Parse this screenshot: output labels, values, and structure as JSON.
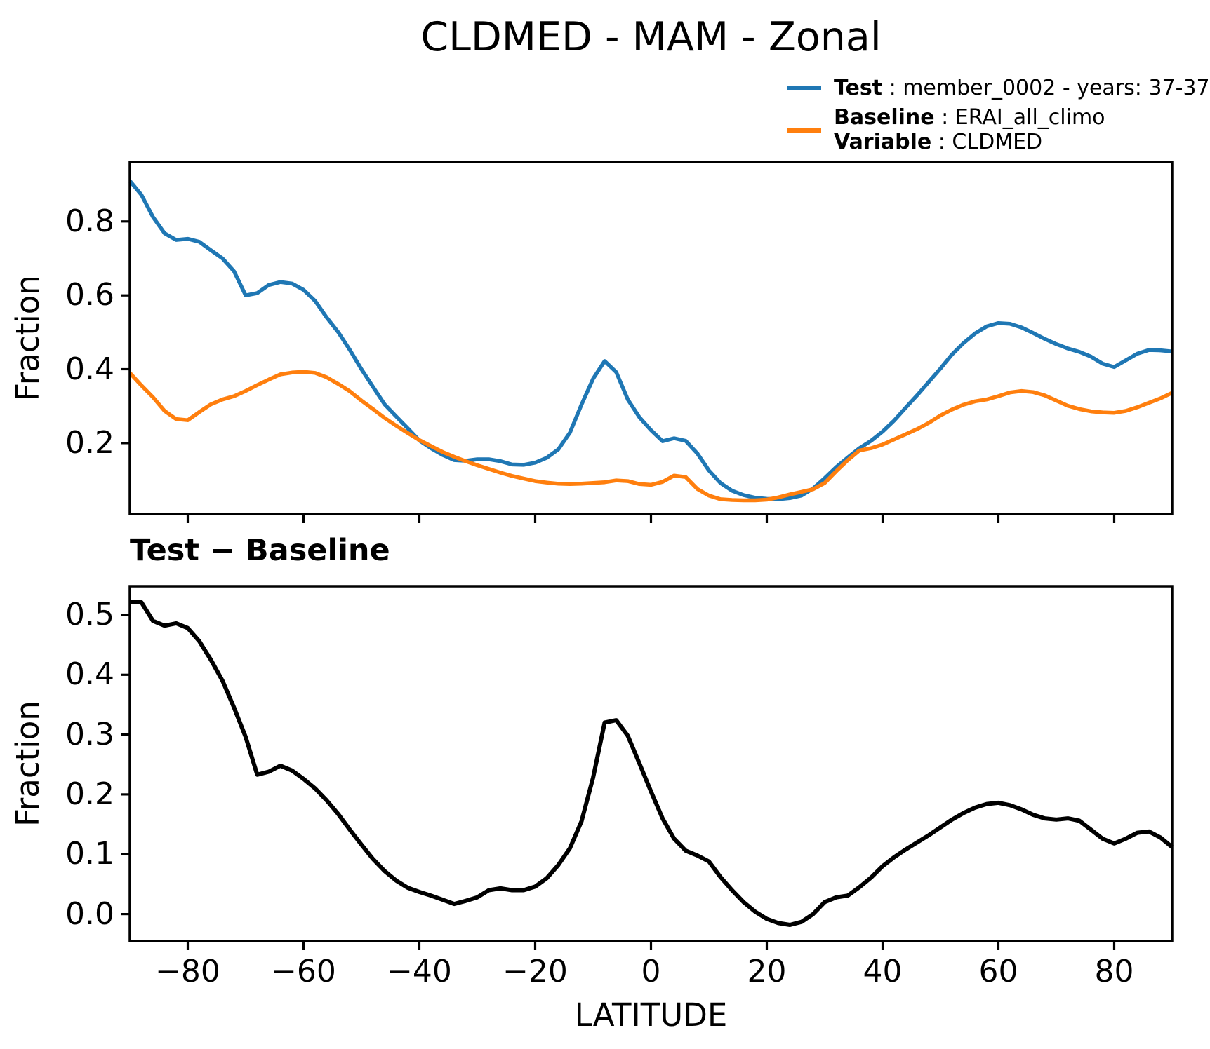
{
  "title": "CLDMED - MAM - Zonal",
  "panel2_title": "Test − Baseline",
  "xlabel": "LATITUDE",
  "ylabel": "Fraction",
  "legend": {
    "test_bold": "Test",
    "test_rest": " : member_0002 - years: 37-37",
    "baseline_bold": "Baseline",
    "baseline_rest": " : ERAI_all_climo",
    "variable_bold": "Variable",
    "variable_rest": " : CLDMED",
    "test_color": "#1f77b4",
    "baseline_color": "#ff7f0e"
  },
  "colors": {
    "test_line": "#1f77b4",
    "baseline_line": "#ff7f0e",
    "diff_line": "#000000",
    "axis": "#000000",
    "background": "#ffffff"
  },
  "chart_data": [
    {
      "type": "line",
      "title": "CLDMED - MAM - Zonal",
      "xlabel": "",
      "ylabel": "Fraction",
      "grid": false,
      "legend_position": "above-right",
      "xlim": [
        -90,
        90
      ],
      "ylim": [
        0.008,
        0.961
      ],
      "x_ticks": [
        -80,
        -60,
        -40,
        -20,
        0,
        20,
        40,
        60,
        80
      ],
      "x_tick_labels": [],
      "y_ticks": [
        0.2,
        0.4,
        0.6,
        0.8
      ],
      "y_tick_labels": [
        "0.2",
        "0.4",
        "0.6",
        "0.8"
      ],
      "x": [
        -90,
        -88,
        -86,
        -84,
        -82,
        -80,
        -78,
        -76,
        -74,
        -72,
        -70,
        -68,
        -66,
        -64,
        -62,
        -60,
        -58,
        -56,
        -54,
        -52,
        -50,
        -48,
        -46,
        -44,
        -42,
        -40,
        -38,
        -36,
        -34,
        -32,
        -30,
        -28,
        -26,
        -24,
        -22,
        -20,
        -18,
        -16,
        -14,
        -12,
        -10,
        -8,
        -6,
        -4,
        -2,
        0,
        2,
        4,
        6,
        8,
        10,
        12,
        14,
        16,
        18,
        20,
        22,
        24,
        26,
        28,
        30,
        32,
        34,
        36,
        38,
        40,
        42,
        44,
        46,
        48,
        50,
        52,
        54,
        56,
        58,
        60,
        62,
        64,
        66,
        68,
        70,
        72,
        74,
        76,
        78,
        80,
        82,
        84,
        86,
        88,
        90
      ],
      "series": [
        {
          "name": "Test : member_0002 - years: 37-37",
          "color": "#1f77b4",
          "values": [
            0.91,
            0.872,
            0.812,
            0.768,
            0.75,
            0.753,
            0.745,
            0.722,
            0.7,
            0.665,
            0.6,
            0.606,
            0.628,
            0.636,
            0.632,
            0.615,
            0.585,
            0.54,
            0.5,
            0.452,
            0.4,
            0.352,
            0.305,
            0.272,
            0.24,
            0.207,
            0.186,
            0.168,
            0.154,
            0.152,
            0.156,
            0.156,
            0.151,
            0.142,
            0.141,
            0.147,
            0.16,
            0.183,
            0.228,
            0.304,
            0.374,
            0.422,
            0.392,
            0.318,
            0.27,
            0.235,
            0.205,
            0.213,
            0.206,
            0.172,
            0.126,
            0.092,
            0.071,
            0.059,
            0.052,
            0.049,
            0.048,
            0.051,
            0.058,
            0.077,
            0.105,
            0.135,
            0.161,
            0.186,
            0.206,
            0.231,
            0.261,
            0.296,
            0.33,
            0.366,
            0.402,
            0.44,
            0.471,
            0.497,
            0.516,
            0.525,
            0.523,
            0.513,
            0.498,
            0.482,
            0.468,
            0.456,
            0.447,
            0.434,
            0.415,
            0.406,
            0.424,
            0.442,
            0.452,
            0.451,
            0.448
          ]
        },
        {
          "name": "Baseline : ERAI_all_climo",
          "color": "#ff7f0e",
          "values": [
            0.39,
            0.356,
            0.324,
            0.287,
            0.265,
            0.262,
            0.284,
            0.305,
            0.318,
            0.327,
            0.341,
            0.357,
            0.372,
            0.386,
            0.391,
            0.393,
            0.39,
            0.378,
            0.36,
            0.34,
            0.315,
            0.292,
            0.268,
            0.247,
            0.227,
            0.208,
            0.192,
            0.176,
            0.163,
            0.151,
            0.14,
            0.13,
            0.12,
            0.111,
            0.104,
            0.097,
            0.093,
            0.09,
            0.089,
            0.09,
            0.092,
            0.094,
            0.099,
            0.097,
            0.089,
            0.087,
            0.095,
            0.112,
            0.108,
            0.076,
            0.058,
            0.048,
            0.046,
            0.045,
            0.045,
            0.047,
            0.053,
            0.061,
            0.068,
            0.075,
            0.092,
            0.124,
            0.154,
            0.18,
            0.186,
            0.196,
            0.21,
            0.224,
            0.238,
            0.255,
            0.275,
            0.291,
            0.304,
            0.313,
            0.318,
            0.327,
            0.337,
            0.341,
            0.338,
            0.329,
            0.315,
            0.301,
            0.292,
            0.286,
            0.283,
            0.282,
            0.287,
            0.297,
            0.309,
            0.321,
            0.336
          ]
        }
      ]
    },
    {
      "type": "line",
      "title": "Test − Baseline",
      "xlabel": "LATITUDE",
      "ylabel": "Fraction",
      "grid": false,
      "xlim": [
        -90,
        90
      ],
      "ylim": [
        -0.045,
        0.548
      ],
      "x_ticks": [
        -80,
        -60,
        -40,
        -20,
        0,
        20,
        40,
        60,
        80
      ],
      "x_tick_labels": [
        "−80",
        "−60",
        "−40",
        "−20",
        "0",
        "20",
        "40",
        "60",
        "80"
      ],
      "y_ticks": [
        0.0,
        0.1,
        0.2,
        0.3,
        0.4,
        0.5
      ],
      "y_tick_labels": [
        "0.0",
        "0.1",
        "0.2",
        "0.3",
        "0.4",
        "0.5"
      ],
      "x": [
        -90,
        -88,
        -86,
        -84,
        -82,
        -80,
        -78,
        -76,
        -74,
        -72,
        -70,
        -68,
        -66,
        -64,
        -62,
        -60,
        -58,
        -56,
        -54,
        -52,
        -50,
        -48,
        -46,
        -44,
        -42,
        -40,
        -38,
        -36,
        -34,
        -32,
        -30,
        -28,
        -26,
        -24,
        -22,
        -20,
        -18,
        -16,
        -14,
        -12,
        -10,
        -8,
        -6,
        -4,
        -2,
        0,
        2,
        4,
        6,
        8,
        10,
        12,
        14,
        16,
        18,
        20,
        22,
        24,
        26,
        28,
        30,
        32,
        34,
        36,
        38,
        40,
        42,
        44,
        46,
        48,
        50,
        52,
        54,
        56,
        58,
        60,
        62,
        64,
        66,
        68,
        70,
        72,
        74,
        76,
        78,
        80,
        82,
        84,
        86,
        88,
        90
      ],
      "series": [
        {
          "name": "Test − Baseline",
          "color": "#000000",
          "values": [
            0.522,
            0.521,
            0.49,
            0.482,
            0.486,
            0.478,
            0.456,
            0.425,
            0.39,
            0.345,
            0.296,
            0.233,
            0.238,
            0.248,
            0.24,
            0.226,
            0.21,
            0.19,
            0.167,
            0.141,
            0.116,
            0.092,
            0.072,
            0.056,
            0.044,
            0.037,
            0.031,
            0.024,
            0.017,
            0.022,
            0.028,
            0.04,
            0.043,
            0.04,
            0.04,
            0.046,
            0.06,
            0.082,
            0.11,
            0.155,
            0.228,
            0.32,
            0.324,
            0.298,
            0.252,
            0.205,
            0.16,
            0.126,
            0.106,
            0.098,
            0.088,
            0.062,
            0.04,
            0.02,
            0.004,
            -0.008,
            -0.015,
            -0.018,
            -0.013,
            0.0,
            0.02,
            0.028,
            0.031,
            0.045,
            0.061,
            0.08,
            0.095,
            0.108,
            0.12,
            0.132,
            0.145,
            0.158,
            0.169,
            0.178,
            0.184,
            0.186,
            0.182,
            0.175,
            0.166,
            0.16,
            0.158,
            0.16,
            0.156,
            0.141,
            0.126,
            0.118,
            0.126,
            0.136,
            0.138,
            0.128,
            0.112
          ]
        }
      ]
    }
  ]
}
